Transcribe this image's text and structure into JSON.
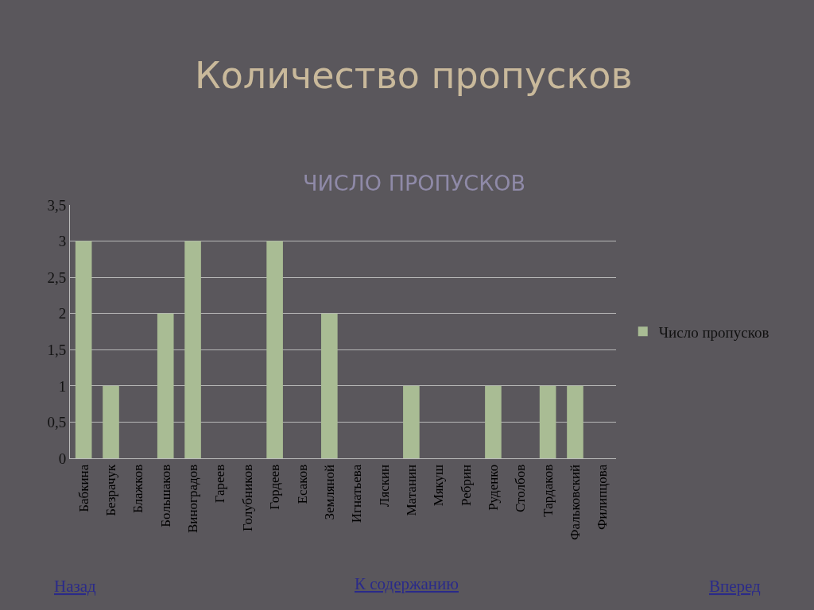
{
  "chart_data": {
    "type": "bar",
    "title": "Количество пропусков",
    "subtitle": "ЧИСЛО ПРОПУСКОВ",
    "categories": [
      "Бабкина",
      "Безрачук",
      "Блажков",
      "Большаков",
      "Виноградов",
      "Гареев",
      "Голубников",
      "Гордеев",
      "Есаков",
      "Земляной",
      "Игнатьева",
      "Ляскин",
      "Матанин",
      "Мякуш",
      "Ребрин",
      "Руденко",
      "Столбов",
      "Тардаков",
      "Фальковский",
      "Филипцова"
    ],
    "series": [
      {
        "name": "Число пропусков",
        "color": "#a9bc94",
        "values": [
          3,
          1,
          0,
          2,
          3,
          0,
          0,
          3,
          0,
          2,
          0,
          0,
          1,
          0,
          0,
          1,
          0,
          1,
          1,
          0
        ]
      }
    ],
    "ylim": [
      0,
      3.5
    ],
    "yticks": [
      {
        "value": 0,
        "label": "0"
      },
      {
        "value": 0.5,
        "label": "0,5"
      },
      {
        "value": 1,
        "label": "1"
      },
      {
        "value": 1.5,
        "label": "1,5"
      },
      {
        "value": 2,
        "label": "2"
      },
      {
        "value": 2.5,
        "label": "2,5"
      },
      {
        "value": 3,
        "label": "3"
      },
      {
        "value": 3.5,
        "label": "3,5"
      }
    ],
    "grid": "y",
    "legend": "right",
    "annotations": [
      "Назад",
      "К содержанию",
      "Вперед"
    ]
  }
}
